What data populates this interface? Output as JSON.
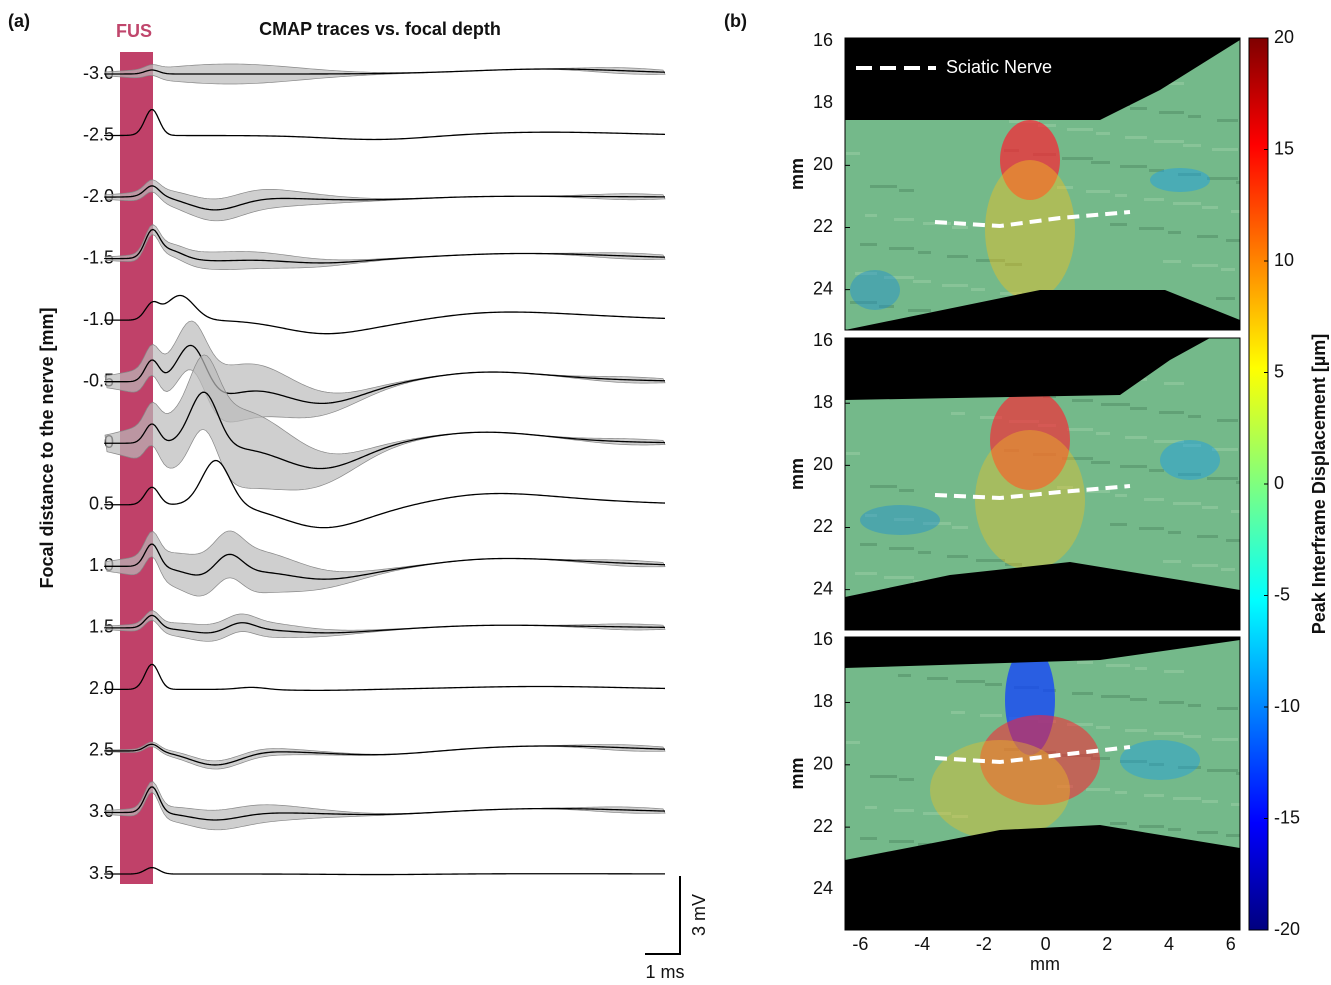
{
  "panel_a": {
    "label": "(a)",
    "stim_label": "FUS",
    "title": "CMAP traces vs. focal depth",
    "ylabel": "Focal distance to the nerve [mm]",
    "depths": [
      {
        "value": -3,
        "label": "-3.0"
      },
      {
        "value": -2.5,
        "label": "-2.5"
      },
      {
        "value": -2,
        "label": "-2.0"
      },
      {
        "value": -1.5,
        "label": "-1.5"
      },
      {
        "value": -1,
        "label": "-1.0"
      },
      {
        "value": -0.5,
        "label": "-0.5"
      },
      0,
      0.5,
      {
        "value": 1,
        "label": "1.0"
      },
      1.5,
      {
        "value": 2,
        "label": "2.0"
      },
      2.5,
      {
        "value": 3,
        "label": "3.0"
      },
      3.5
    ],
    "scalebar_y": "3 mV",
    "scalebar_x": "1 ms"
  },
  "panel_b": {
    "label": "(b)",
    "legend": "Sciatic Nerve",
    "ylabel": "mm",
    "xlabel": "mm",
    "xlim": [
      -6.5,
      6.3
    ],
    "xticks": [
      -6,
      -4,
      -2,
      0,
      2,
      4,
      6
    ],
    "ylim": [
      15.9,
      25.3
    ],
    "yticks": [
      16,
      18,
      20,
      22,
      24
    ],
    "colorbar": {
      "label": "Peak Interframe Displacement [µm]",
      "lim": [
        -20,
        20
      ],
      "ticks": [
        20,
        15,
        10,
        5,
        0,
        -5,
        -10,
        -15,
        -20
      ]
    }
  }
}
